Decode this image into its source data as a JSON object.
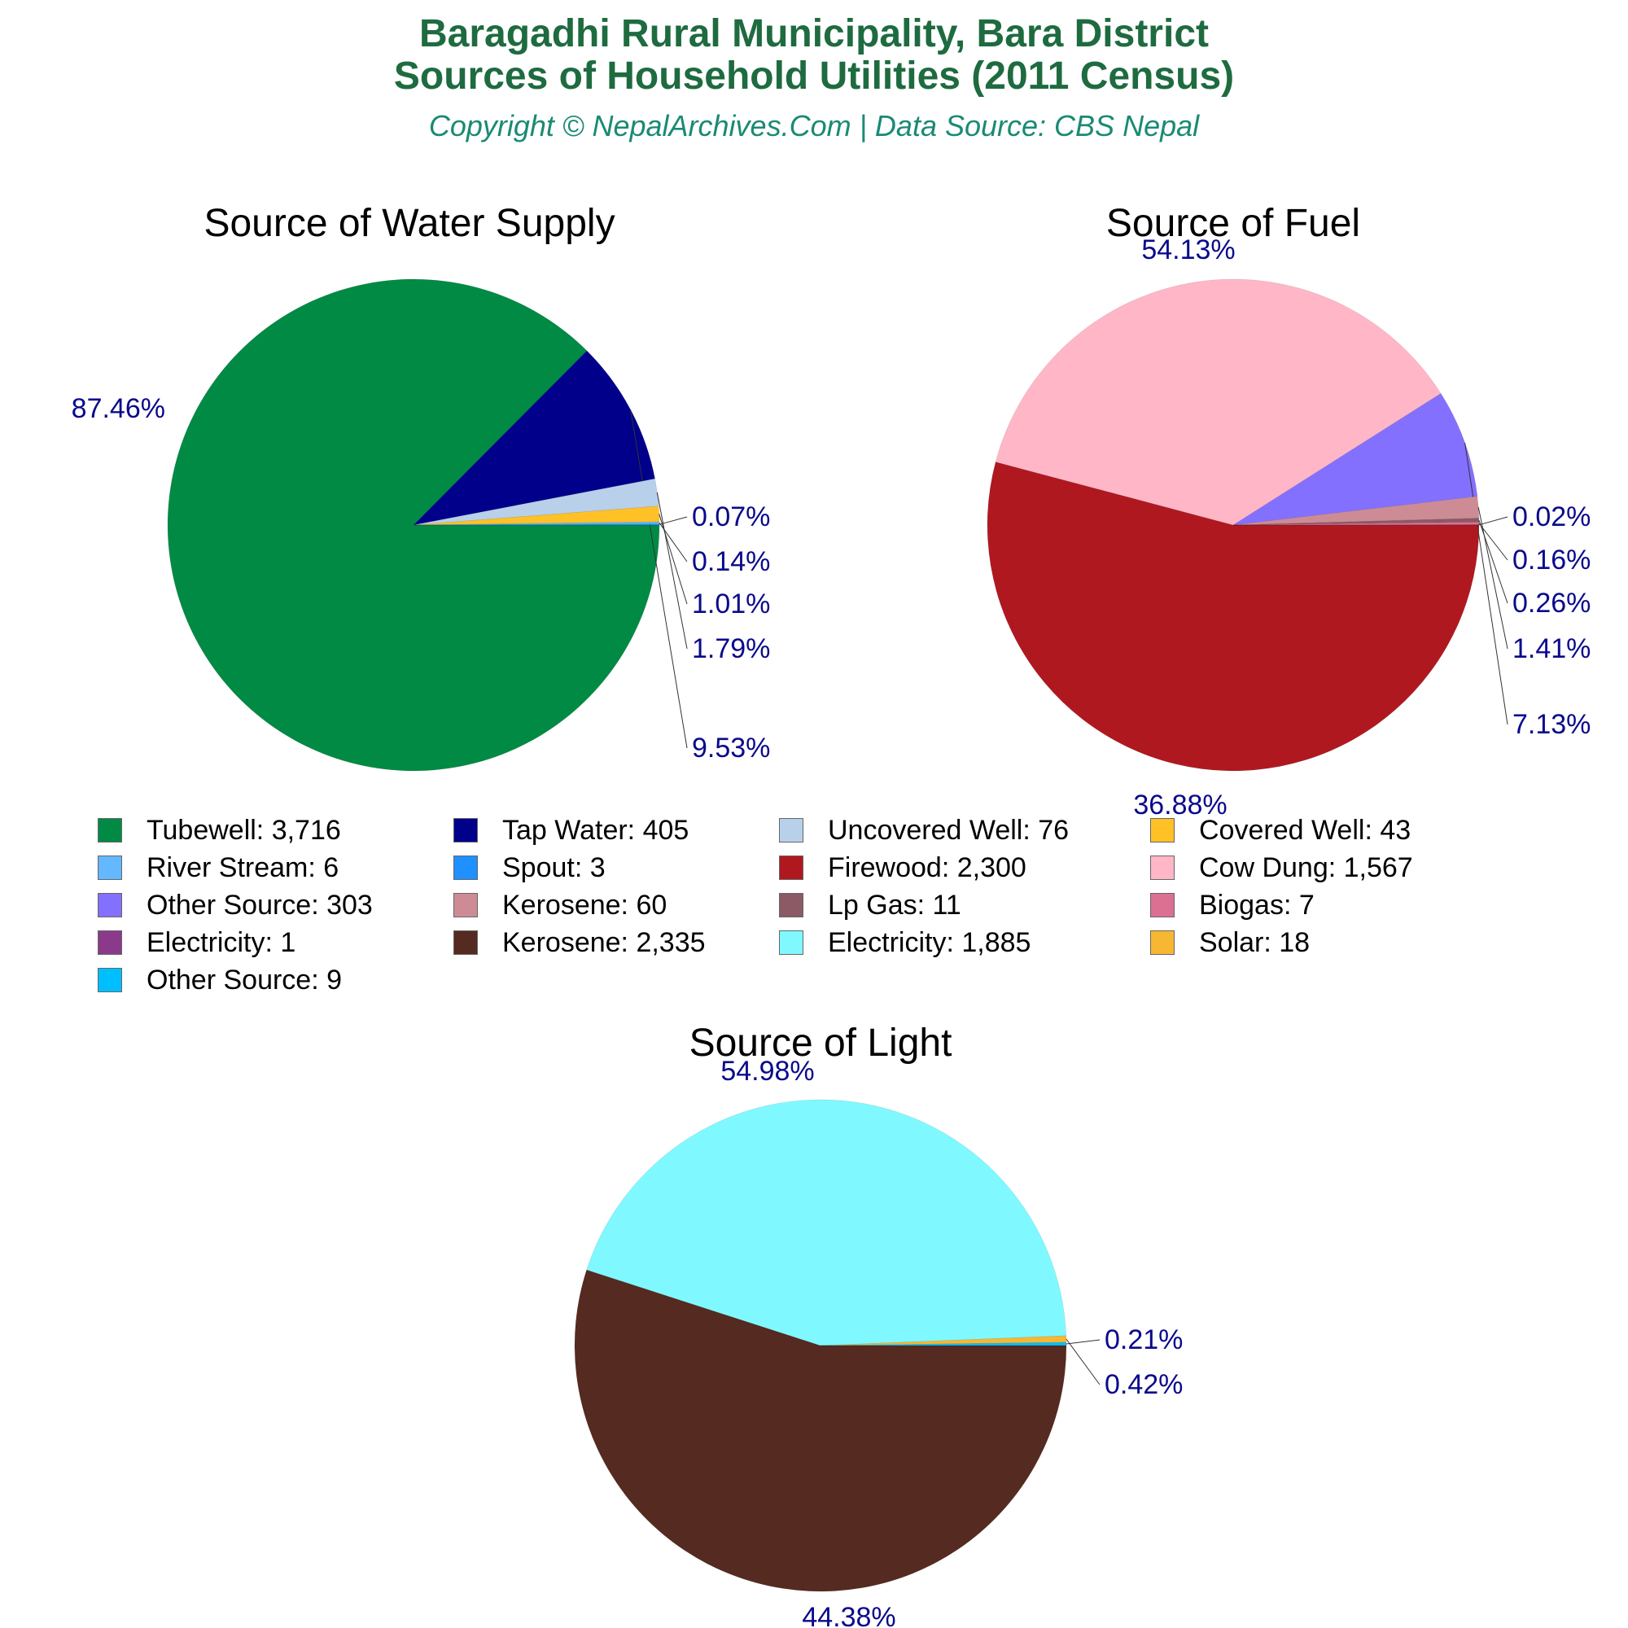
{
  "title_line1": "Baragadhi Rural Municipality, Bara District",
  "title_line2": "Sources of Household Utilities (2011 Census)",
  "subtitle": "Copyright © NepalArchives.Com | Data Source: CBS Nepal",
  "legend": [
    {
      "label": "Tubewell: 3,716",
      "color": "#008a44"
    },
    {
      "label": "Tap Water: 405",
      "color": "#00008b"
    },
    {
      "label": "Uncovered Well: 76",
      "color": "#b8d0ea"
    },
    {
      "label": "Covered Well: 43",
      "color": "#ffc125"
    },
    {
      "label": "River Stream: 6",
      "color": "#63b8ff"
    },
    {
      "label": "Spout: 3",
      "color": "#1e90ff"
    },
    {
      "label": "Firewood: 2,300",
      "color": "#b01820"
    },
    {
      "label": "Cow Dung: 1,567",
      "color": "#ffb6c6"
    },
    {
      "label": "Other Source: 303",
      "color": "#8470ff"
    },
    {
      "label": "Kerosene: 60",
      "color": "#cd8c95"
    },
    {
      "label": "Lp Gas: 11",
      "color": "#8b5a65"
    },
    {
      "label": "Biogas: 7",
      "color": "#db7093"
    },
    {
      "label": "Electricity: 1",
      "color": "#8b3a8b"
    },
    {
      "label": "Kerosene: 2,335",
      "color": "#552a20"
    },
    {
      "label": "Electricity: 1,885",
      "color": "#7ff9ff"
    },
    {
      "label": "Solar: 18",
      "color": "#f7b733"
    },
    {
      "label": "Other Source: 9",
      "color": "#00bfff"
    }
  ],
  "chart_data": [
    {
      "type": "pie",
      "title": "Source of Water Supply",
      "slices": [
        {
          "name": "Tubewell",
          "value": 3716,
          "pct_label": "87.46%",
          "color": "#008a44"
        },
        {
          "name": "Tap Water",
          "value": 405,
          "pct_label": "9.53%",
          "color": "#00008b"
        },
        {
          "name": "Uncovered Well",
          "value": 76,
          "pct_label": "1.79%",
          "color": "#b8d0ea"
        },
        {
          "name": "Covered Well",
          "value": 43,
          "pct_label": "1.01%",
          "color": "#ffc125"
        },
        {
          "name": "River Stream",
          "value": 6,
          "pct_label": "0.14%",
          "color": "#63b8ff"
        },
        {
          "name": "Spout",
          "value": 3,
          "pct_label": "0.07%",
          "color": "#1e90ff"
        }
      ]
    },
    {
      "type": "pie",
      "title": "Source of Fuel",
      "slices": [
        {
          "name": "Firewood",
          "value": 2300,
          "pct_label": "54.13%",
          "color": "#b01820"
        },
        {
          "name": "Cow Dung",
          "value": 1567,
          "pct_label": "36.88%",
          "color": "#ffb6c6"
        },
        {
          "name": "Other Source",
          "value": 303,
          "pct_label": "7.13%",
          "color": "#8470ff"
        },
        {
          "name": "Kerosene",
          "value": 60,
          "pct_label": "1.41%",
          "color": "#cd8c95"
        },
        {
          "name": "Lp Gas",
          "value": 11,
          "pct_label": "0.26%",
          "color": "#8b5a65"
        },
        {
          "name": "Biogas",
          "value": 7,
          "pct_label": "0.16%",
          "color": "#db7093"
        },
        {
          "name": "Electricity",
          "value": 1,
          "pct_label": "0.02%",
          "color": "#8b3a8b"
        }
      ]
    },
    {
      "type": "pie",
      "title": "Source of Light",
      "slices": [
        {
          "name": "Kerosene",
          "value": 2335,
          "pct_label": "54.98%",
          "color": "#552a20"
        },
        {
          "name": "Electricity",
          "value": 1885,
          "pct_label": "44.38%",
          "color": "#7ff9ff"
        },
        {
          "name": "Solar",
          "value": 18,
          "pct_label": "0.42%",
          "color": "#f7b733"
        },
        {
          "name": "Other Source",
          "value": 9,
          "pct_label": "0.21%",
          "color": "#00bfff"
        }
      ]
    }
  ]
}
